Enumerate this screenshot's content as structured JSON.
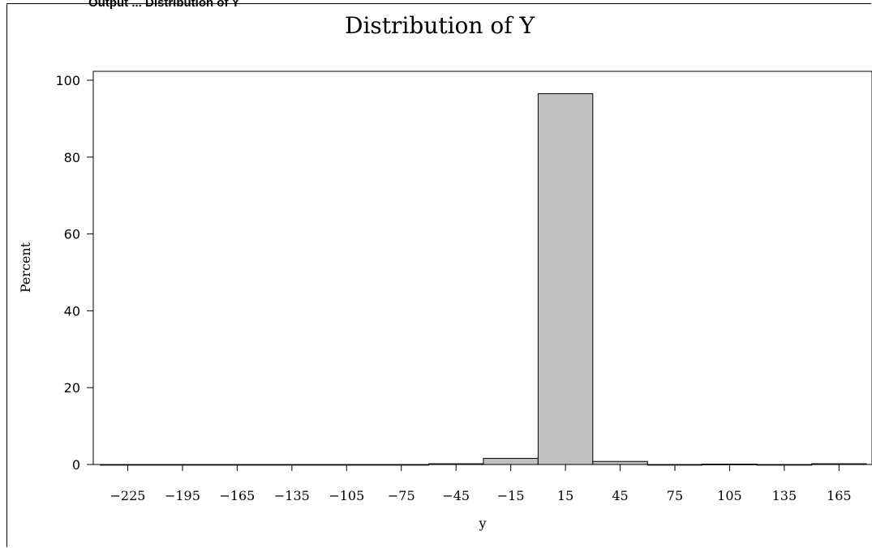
{
  "header": {
    "cut_text": "Output ... Distribution of Y"
  },
  "chart_data": {
    "type": "bar",
    "title": "Distribution of Y",
    "xlabel": "y",
    "ylabel": "Percent",
    "ylim": [
      0,
      100
    ],
    "yticks": [
      0,
      20,
      40,
      60,
      80,
      100
    ],
    "categories": [
      "-225",
      "-195",
      "-165",
      "-135",
      "-105",
      "-75",
      "-45",
      "-15",
      "15",
      "45",
      "75",
      "105",
      "135",
      "165"
    ],
    "x": [
      -225,
      -195,
      -165,
      -135,
      -105,
      -75,
      -45,
      -15,
      15,
      45,
      75,
      105,
      135,
      165
    ],
    "values": [
      0.0,
      0.0,
      0.0,
      0.0,
      0.0,
      0.0,
      0.2,
      1.6,
      96.5,
      0.8,
      0.0,
      0.1,
      0.0,
      0.2
    ],
    "bin_width": 30,
    "bar_color": "#c0c0c0",
    "edge_color": "#000000",
    "grid": false
  }
}
